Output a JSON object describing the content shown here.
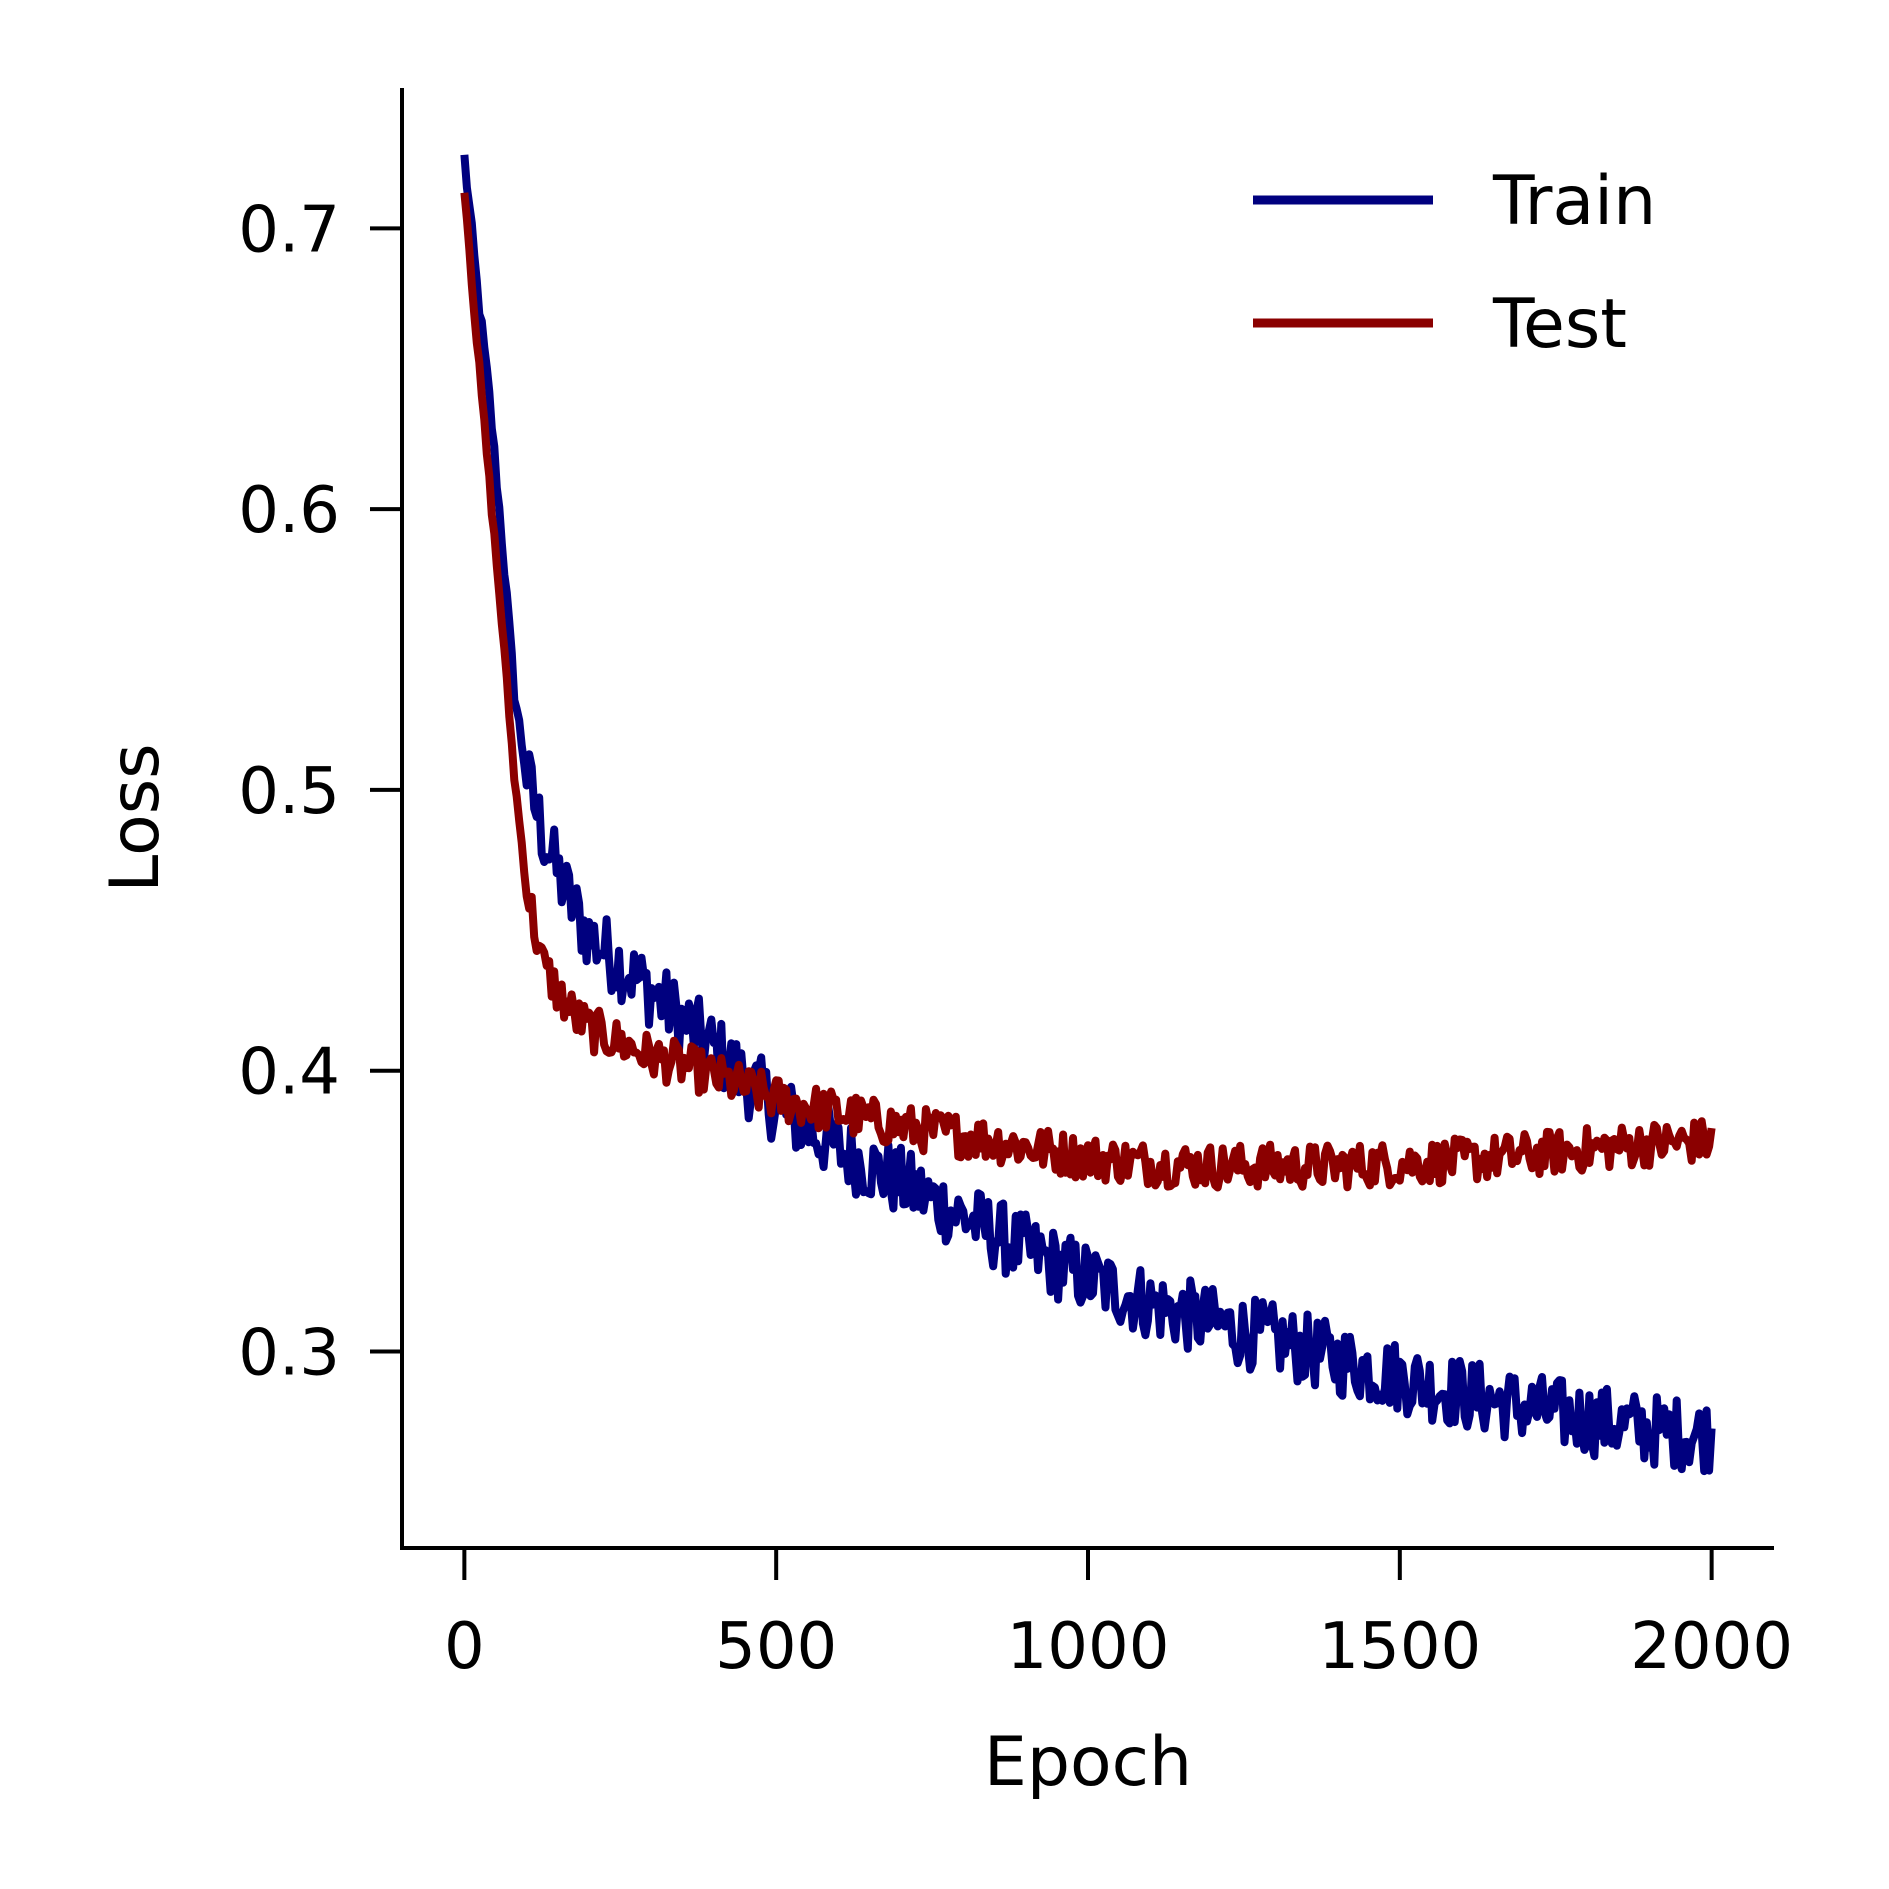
{
  "chart_data": {
    "type": "line",
    "title": "",
    "xlabel": "Epoch",
    "ylabel": "Loss",
    "xlim": [
      -100,
      2100
    ],
    "ylim": [
      0.23,
      0.75
    ],
    "xticks": [
      0,
      500,
      1000,
      1500,
      2000
    ],
    "xtick_labels": [
      "0",
      "500",
      "1000",
      "1500",
      "2000"
    ],
    "yticks": [
      0.3,
      0.4,
      0.5,
      0.6,
      0.7
    ],
    "ytick_labels": [
      "0.3",
      "0.4",
      "0.5",
      "0.6",
      "0.7"
    ],
    "grid": false,
    "legend_position": "top-right",
    "series": [
      {
        "name": "Train",
        "color": "#00007f",
        "x": [
          0,
          20,
          40,
          60,
          80,
          100,
          125,
          150,
          175,
          200,
          250,
          300,
          350,
          400,
          450,
          500,
          600,
          700,
          800,
          900,
          1000,
          1100,
          1200,
          1300,
          1400,
          1500,
          1600,
          1700,
          1800,
          1900,
          2000
        ],
        "values": [
          0.725,
          0.68,
          0.64,
          0.59,
          0.535,
          0.505,
          0.485,
          0.47,
          0.458,
          0.448,
          0.438,
          0.428,
          0.418,
          0.408,
          0.397,
          0.387,
          0.372,
          0.36,
          0.348,
          0.336,
          0.326,
          0.317,
          0.31,
          0.304,
          0.297,
          0.291,
          0.285,
          0.28,
          0.276,
          0.272,
          0.27
        ]
      },
      {
        "name": "Test",
        "color": "#8b0000",
        "x": [
          0,
          20,
          40,
          60,
          80,
          100,
          125,
          150,
          175,
          200,
          250,
          300,
          350,
          400,
          450,
          500,
          600,
          700,
          800,
          900,
          1000,
          1100,
          1200,
          1300,
          1400,
          1500,
          1600,
          1700,
          1800,
          1900,
          2000
        ],
        "values": [
          0.715,
          0.66,
          0.61,
          0.56,
          0.505,
          0.465,
          0.438,
          0.428,
          0.42,
          0.415,
          0.41,
          0.405,
          0.402,
          0.398,
          0.394,
          0.39,
          0.385,
          0.38,
          0.377,
          0.373,
          0.369,
          0.367,
          0.366,
          0.366,
          0.366,
          0.367,
          0.368,
          0.37,
          0.372,
          0.374,
          0.375
        ]
      }
    ]
  }
}
